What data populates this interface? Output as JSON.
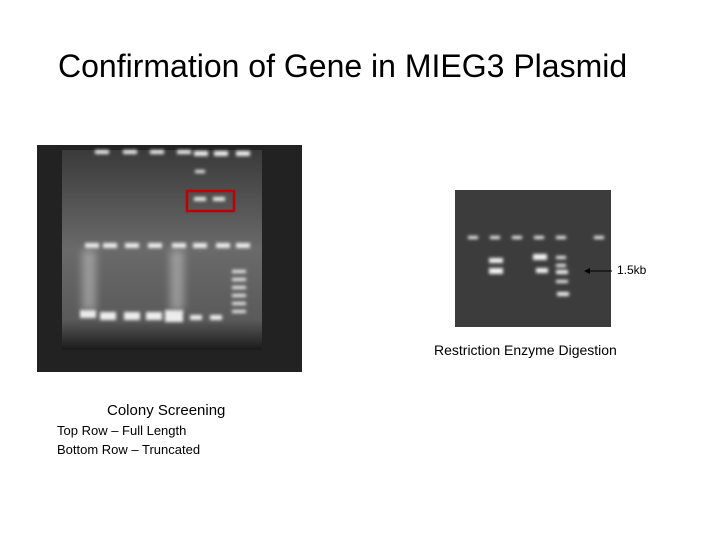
{
  "slide": {
    "title": "Confirmation of Gene in MIEG3 Plasmid",
    "left_figure": {
      "caption": "Colony Screening",
      "notes": [
        "Top Row – Full Length",
        "Bottom Row – Truncated"
      ]
    },
    "right_figure": {
      "caption": "Restriction Enzyme Digestion",
      "arrow_label": "1.5kb"
    }
  }
}
